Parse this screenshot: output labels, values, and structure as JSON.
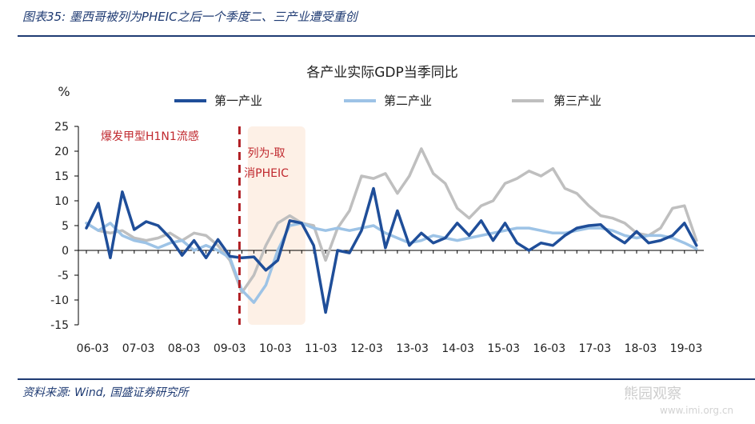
{
  "header": {
    "title": "图表35: 墨西哥被列为PHEIC之后一个季度二、三产业遭受重创"
  },
  "footer": {
    "source": "资料来源: Wind, 国盛证券研究所"
  },
  "watermark": {
    "text": "熊园观察",
    "url": "www.imi.org.cn"
  },
  "chart_data": {
    "type": "line",
    "title": "各产业实际GDP当季同比",
    "ylabel": "%",
    "ylim": [
      -15,
      25
    ],
    "yticks": [
      -15,
      -10,
      -5,
      0,
      5,
      10,
      15,
      20,
      25
    ],
    "xtick_labels": [
      "06-03",
      "07-03",
      "08-03",
      "09-03",
      "10-03",
      "11-03",
      "12-03",
      "13-03",
      "14-03",
      "15-03",
      "16-03",
      "17-03",
      "18-03",
      "19-03"
    ],
    "legend_position": "top",
    "annotations": {
      "outbreak_label": "爆发甲型H1N1流感",
      "pheic_label_line1": "列为-取",
      "pheic_label_line2": "消PHEIC",
      "outbreak_quarter_index": 13,
      "shade_start_index": 14,
      "shade_end_index": 18
    },
    "series": [
      {
        "name": "第一产业",
        "color": "#1f4e99",
        "values": [
          4.5,
          9.5,
          -1.5,
          11.8,
          4.2,
          5.8,
          5.0,
          2.5,
          -1.0,
          2.0,
          -1.5,
          2.2,
          -1.2,
          -1.5,
          -1.3,
          -4.0,
          -2.0,
          6.0,
          5.5,
          1.0,
          -12.5,
          0.0,
          -0.5,
          4.0,
          12.5,
          0.5,
          8.0,
          1.0,
          3.5,
          1.5,
          2.5,
          5.5,
          3.0,
          6.0,
          2.0,
          5.5,
          1.5,
          0.0,
          1.5,
          1.0,
          3.0,
          4.5,
          5.0,
          5.2,
          3.0,
          1.5,
          3.8,
          1.5,
          2.0,
          3.0,
          5.5,
          1.0
        ]
      },
      {
        "name": "第二产业",
        "color": "#9dc3e6",
        "values": [
          5.5,
          4.0,
          5.5,
          3.0,
          2.0,
          1.5,
          0.5,
          1.5,
          2.0,
          0.0,
          1.0,
          0.0,
          -1.5,
          -8.0,
          -10.5,
          -7.0,
          0.0,
          5.0,
          5.5,
          4.5,
          4.0,
          4.5,
          4.0,
          4.5,
          5.0,
          3.5,
          2.5,
          1.5,
          2.0,
          3.0,
          2.5,
          2.0,
          2.5,
          3.0,
          3.5,
          4.0,
          4.5,
          4.5,
          4.0,
          3.5,
          3.5,
          4.0,
          4.5,
          4.5,
          4.0,
          3.0,
          2.5,
          3.0,
          3.0,
          2.5,
          1.5,
          0.3
        ]
      },
      {
        "name": "第三产业",
        "color": "#bfbfbf",
        "values": [
          5.5,
          4.0,
          3.5,
          4.0,
          2.5,
          2.0,
          2.5,
          3.5,
          2.0,
          3.5,
          3.0,
          1.0,
          -2.0,
          -8.5,
          -5.0,
          1.0,
          5.5,
          7.0,
          5.5,
          5.0,
          -2.0,
          4.5,
          8.0,
          15.0,
          14.5,
          15.5,
          11.5,
          15.0,
          20.5,
          15.5,
          13.5,
          8.5,
          6.5,
          9.0,
          10.0,
          13.5,
          14.5,
          16.0,
          15.0,
          16.5,
          12.5,
          11.5,
          9.0,
          7.0,
          6.5,
          5.5,
          3.5,
          3.0,
          4.5,
          8.5,
          9.0,
          2.0
        ]
      }
    ]
  }
}
